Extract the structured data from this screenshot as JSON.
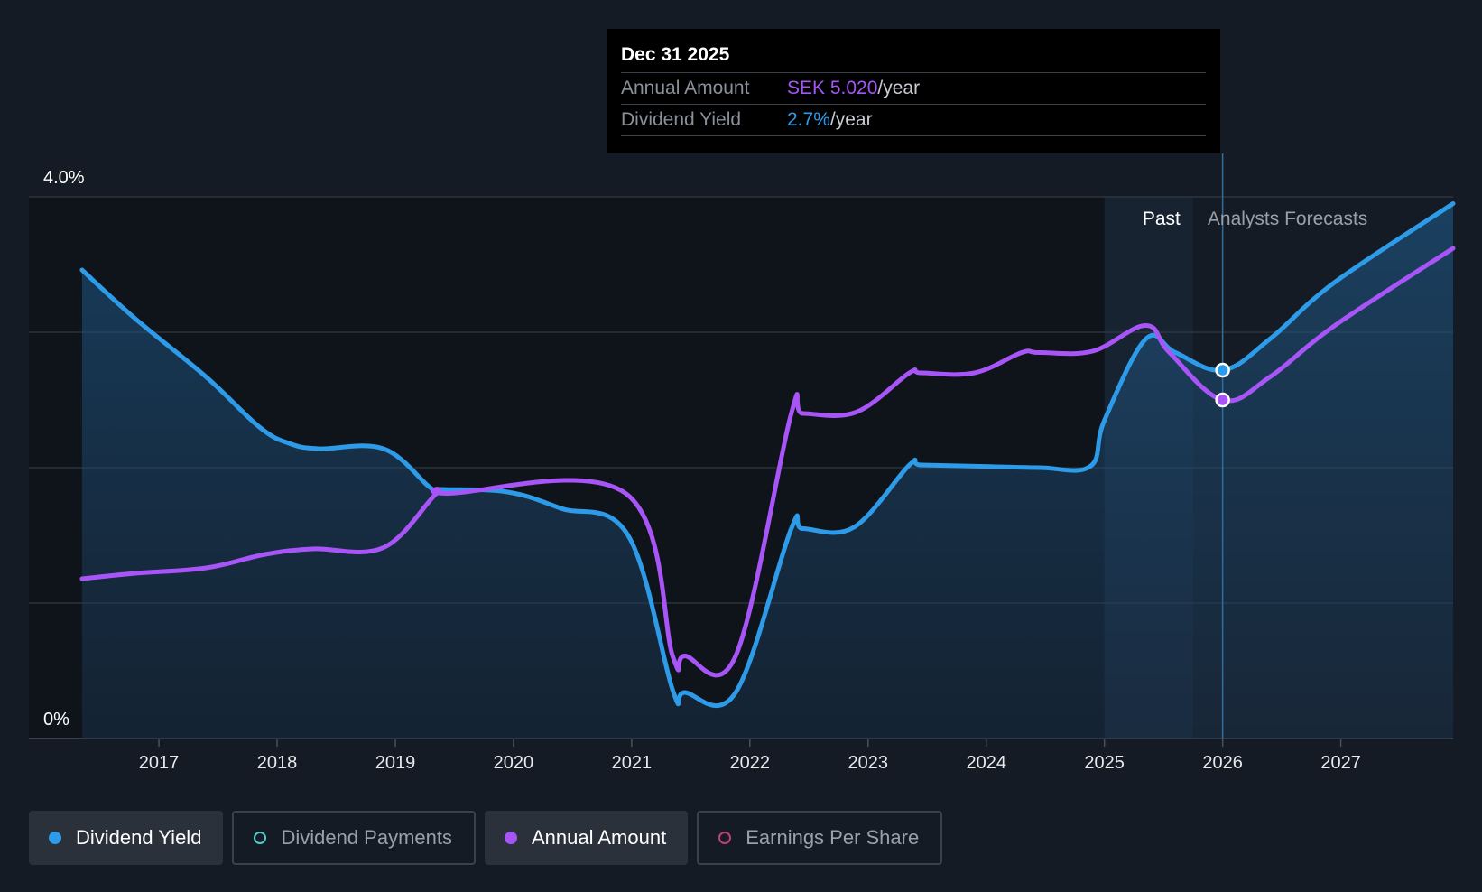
{
  "chart_data": {
    "type": "line",
    "title": "",
    "xlabel": "",
    "ylabel": "",
    "x_ticks": [
      "2017",
      "2018",
      "2019",
      "2020",
      "2021",
      "2022",
      "2023",
      "2024",
      "2025",
      "2026",
      "2027"
    ],
    "x_range": [
      2015.9,
      2027.95
    ],
    "y_tick_labels": [
      "0%",
      "4.0%"
    ],
    "ylim": [
      0,
      4.0
    ],
    "grid": true,
    "forecast_start": 2025.0,
    "past_end": 2025.75,
    "period_labels": {
      "past": "Past",
      "forecast": "Analysts Forecasts"
    },
    "series": [
      {
        "name": "Dividend Yield",
        "color": "#2e9be8",
        "unit": "%",
        "points": [
          [
            2016.35,
            3.46
          ],
          [
            2016.8,
            3.1
          ],
          [
            2017.4,
            2.67
          ],
          [
            2017.85,
            2.3
          ],
          [
            2018.1,
            2.18
          ],
          [
            2018.35,
            2.14
          ],
          [
            2018.9,
            2.14
          ],
          [
            2019.3,
            1.85
          ],
          [
            2019.4,
            1.84
          ],
          [
            2019.95,
            1.82
          ],
          [
            2020.4,
            1.7
          ],
          [
            2020.97,
            1.5
          ],
          [
            2021.35,
            0.35
          ],
          [
            2021.45,
            0.34
          ],
          [
            2021.88,
            0.34
          ],
          [
            2022.35,
            1.55
          ],
          [
            2022.45,
            1.55
          ],
          [
            2022.88,
            1.56
          ],
          [
            2023.35,
            2.02
          ],
          [
            2023.45,
            2.02
          ],
          [
            2023.95,
            2.01
          ],
          [
            2024.45,
            2.0
          ],
          [
            2024.88,
            2.01
          ],
          [
            2025.0,
            2.35
          ],
          [
            2025.35,
            2.95
          ],
          [
            2025.6,
            2.85
          ],
          [
            2026.0,
            2.72
          ],
          [
            2026.4,
            2.95
          ],
          [
            2026.95,
            3.37
          ],
          [
            2027.95,
            3.95
          ]
        ]
      },
      {
        "name": "Annual Amount",
        "color": "#a855f7",
        "unit": "SEK",
        "points": [
          [
            2016.35,
            1.18
          ],
          [
            2016.8,
            1.22
          ],
          [
            2017.4,
            1.26
          ],
          [
            2017.9,
            1.36
          ],
          [
            2018.3,
            1.4
          ],
          [
            2018.9,
            1.41
          ],
          [
            2019.35,
            1.81
          ],
          [
            2019.45,
            1.81
          ],
          [
            2020.95,
            1.81
          ],
          [
            2021.35,
            0.6
          ],
          [
            2021.45,
            0.61
          ],
          [
            2021.88,
            0.61
          ],
          [
            2022.35,
            2.4
          ],
          [
            2022.45,
            2.4
          ],
          [
            2022.9,
            2.41
          ],
          [
            2023.35,
            2.7
          ],
          [
            2023.45,
            2.7
          ],
          [
            2023.9,
            2.7
          ],
          [
            2024.3,
            2.85
          ],
          [
            2024.45,
            2.85
          ],
          [
            2024.9,
            2.86
          ],
          [
            2025.35,
            3.05
          ],
          [
            2025.55,
            2.85
          ],
          [
            2026.0,
            2.5
          ],
          [
            2026.4,
            2.67
          ],
          [
            2026.95,
            3.05
          ],
          [
            2027.95,
            3.62
          ]
        ]
      }
    ],
    "highlight": {
      "x": 2026.0,
      "yield_y": 2.72,
      "amount_y": 2.5
    },
    "tooltip": {
      "date": "Dec 31 2025",
      "rows": [
        {
          "label": "Annual Amount",
          "value": "SEK 5.020",
          "unit": "/year"
        },
        {
          "label": "Dividend Yield",
          "value": "2.7%",
          "unit": "/year"
        }
      ]
    }
  },
  "legend": [
    {
      "label": "Dividend Yield",
      "color": "#2e9be8",
      "active": true
    },
    {
      "label": "Dividend Payments",
      "color": "#4fd1c5",
      "active": false
    },
    {
      "label": "Annual Amount",
      "color": "#a855f7",
      "active": true
    },
    {
      "label": "Earnings Per Share",
      "color": "#c0407a",
      "active": false
    }
  ]
}
